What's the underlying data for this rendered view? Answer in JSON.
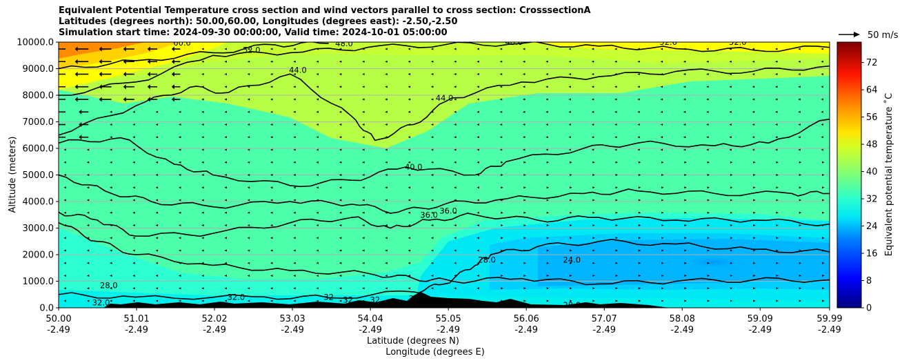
{
  "title_lines": [
    "Equivalent Potential Temperature cross section and wind vectors parallel to cross section: CrosssectionA",
    "Latitudes (degrees north): 50.00,60.00, Longitudes (degrees east): -2.50,-2.50",
    "Simulation start time: 2024-09-30 00:00:00, Valid time: 2024-10-01 05:00:00"
  ],
  "chart_data": {
    "type": "contourf-cross-section",
    "title": "Equivalent Potential Temperature cross section and wind vectors parallel to cross section: CrosssectionA",
    "ylabel": "Altitude (meters)",
    "xlabel_lat": "Latitude (degrees N)",
    "xlabel_lon": "Longitude (degrees E)",
    "ylim": [
      0,
      10000
    ],
    "xlim": [
      50.0,
      59.99
    ],
    "y_ticks": [
      0,
      1000,
      2000,
      3000,
      4000,
      5000,
      6000,
      7000,
      8000,
      9000,
      10000
    ],
    "y_tick_labels": [
      "0.0",
      "1000.0",
      "2000.0",
      "3000.0",
      "4000.0",
      "5000.0",
      "6000.0",
      "7000.0",
      "8000.0",
      "9000.0",
      "10000.0"
    ],
    "x_ticks": [
      50.0,
      51.01,
      52.02,
      53.03,
      54.04,
      55.05,
      56.06,
      57.07,
      58.08,
      59.09,
      59.99
    ],
    "x_tick_labels": [
      [
        "50.00",
        "-2.49"
      ],
      [
        "51.01",
        "-2.49"
      ],
      [
        "52.02",
        "-2.49"
      ],
      [
        "53.03",
        "-2.49"
      ],
      [
        "54.04",
        "-2.49"
      ],
      [
        "55.05",
        "-2.49"
      ],
      [
        "56.06",
        "-2.49"
      ],
      [
        "57.07",
        "-2.49"
      ],
      [
        "58.08",
        "-2.49"
      ],
      [
        "59.09",
        "-2.49"
      ],
      [
        "59.99",
        "-2.49"
      ]
    ],
    "grid": "horizontal",
    "colorbar": {
      "label": "Equivalent potential temperature ˚C",
      "range": [
        0,
        78
      ],
      "ticks": [
        0,
        8,
        16,
        24,
        32,
        40,
        48,
        56,
        64,
        72
      ],
      "tick_labels": [
        "0",
        "8",
        "16",
        "24",
        "32",
        "40",
        "48",
        "56",
        "64",
        "72"
      ]
    },
    "contour_lines": [
      {
        "level": 28,
        "points": [
          [
            50.0,
            500
          ],
          [
            51.0,
            400
          ],
          [
            52.5,
            420
          ],
          [
            53.5,
            380
          ],
          [
            54.6,
            600
          ],
          [
            55.0,
            900
          ],
          [
            55.4,
            1600
          ],
          [
            55.6,
            2000
          ],
          [
            56.2,
            2300
          ],
          [
            57.0,
            2500
          ],
          [
            58.0,
            2400
          ],
          [
            59.0,
            2200
          ],
          [
            59.99,
            2100
          ]
        ]
      },
      {
        "level": 32,
        "points": [
          [
            50.0,
            3200
          ],
          [
            50.5,
            2500
          ],
          [
            51.0,
            2000
          ],
          [
            52.0,
            1600
          ],
          [
            53.0,
            1400
          ],
          [
            54.0,
            1300
          ],
          [
            54.6,
            1100
          ],
          [
            55.1,
            1000
          ],
          [
            56.0,
            1100
          ],
          [
            57.0,
            900
          ],
          [
            58.0,
            1000
          ],
          [
            59.0,
            1050
          ],
          [
            59.99,
            1050
          ]
        ]
      },
      {
        "level": 36,
        "points": [
          [
            50.0,
            3600
          ],
          [
            50.5,
            3300
          ],
          [
            51.0,
            2700
          ],
          [
            52.0,
            2800
          ],
          [
            53.0,
            3200
          ],
          [
            53.8,
            3400
          ],
          [
            54.3,
            3000
          ],
          [
            54.8,
            3300
          ],
          [
            55.4,
            3500
          ],
          [
            56.2,
            3300
          ],
          [
            57.0,
            3400
          ],
          [
            58.0,
            3300
          ],
          [
            59.0,
            3300
          ],
          [
            59.99,
            3150
          ]
        ]
      },
      {
        "level": 40,
        "points": [
          [
            50.0,
            5000
          ],
          [
            50.6,
            4400
          ],
          [
            51.2,
            4000
          ],
          [
            52.0,
            3800
          ],
          [
            53.0,
            4000
          ],
          [
            53.8,
            3900
          ],
          [
            54.4,
            3600
          ],
          [
            55.0,
            3900
          ],
          [
            55.8,
            4100
          ],
          [
            56.8,
            4300
          ],
          [
            57.5,
            4400
          ],
          [
            58.5,
            4300
          ],
          [
            59.5,
            4300
          ],
          [
            59.99,
            4300
          ]
        ]
      },
      {
        "level": 40,
        "points": [
          [
            50.0,
            6200
          ],
          [
            50.8,
            6400
          ],
          [
            51.5,
            5400
          ],
          [
            52.0,
            5000
          ],
          [
            53.0,
            4600
          ],
          [
            53.8,
            4800
          ],
          [
            54.5,
            5300
          ],
          [
            55.4,
            5000
          ],
          [
            55.8,
            5500
          ],
          [
            56.8,
            6000
          ],
          [
            57.5,
            6200
          ],
          [
            58.5,
            6100
          ],
          [
            59.2,
            6200
          ],
          [
            59.99,
            7100
          ]
        ]
      },
      {
        "level": 44,
        "points": [
          [
            50.0,
            6500
          ],
          [
            51.0,
            7600
          ],
          [
            51.7,
            8300
          ],
          [
            52.2,
            8100
          ],
          [
            53.0,
            8800
          ],
          [
            53.8,
            7200
          ],
          [
            54.1,
            6300
          ],
          [
            54.6,
            6900
          ],
          [
            55.1,
            7900
          ],
          [
            56.0,
            8500
          ],
          [
            57.0,
            8700
          ],
          [
            58.0,
            8900
          ],
          [
            59.0,
            8900
          ],
          [
            59.99,
            9100
          ]
        ]
      },
      {
        "level": 48,
        "points": [
          [
            50.0,
            8000
          ],
          [
            51.0,
            8500
          ],
          [
            52.0,
            9500
          ],
          [
            53.0,
            9600
          ],
          [
            54.0,
            9800
          ],
          [
            55.0,
            9900
          ],
          [
            56.0,
            9950
          ],
          [
            57.0,
            9850
          ],
          [
            58.0,
            9750
          ],
          [
            59.0,
            9700
          ],
          [
            59.99,
            9800
          ]
        ]
      },
      {
        "level": 52,
        "points": [
          [
            50.0,
            9000
          ],
          [
            51.0,
            9300
          ],
          [
            52.0,
            9600
          ],
          [
            52.8,
            9900
          ],
          [
            53.5,
            9950
          ]
        ]
      }
    ],
    "contour_labels": [
      {
        "text": "60.0",
        "lat": 51.6,
        "alt": 9980
      },
      {
        "text": "52.0",
        "lat": 52.5,
        "alt": 9700
      },
      {
        "text": "48.0",
        "lat": 53.7,
        "alt": 9950
      },
      {
        "text": "48.0",
        "lat": 55.9,
        "alt": 10000
      },
      {
        "text": "52.0",
        "lat": 57.9,
        "alt": 10000
      },
      {
        "text": "52.0",
        "lat": 58.8,
        "alt": 10000
      },
      {
        "text": "44.0",
        "lat": 53.1,
        "alt": 8950
      },
      {
        "text": "44.0",
        "lat": 55.0,
        "alt": 7900
      },
      {
        "text": "40.0",
        "lat": 54.6,
        "alt": 5300
      },
      {
        "text": "36.0",
        "lat": 54.8,
        "alt": 3500
      },
      {
        "text": "36.0",
        "lat": 55.05,
        "alt": 3650
      },
      {
        "text": "28.0",
        "lat": 55.55,
        "alt": 1800
      },
      {
        "text": "24.0",
        "lat": 56.65,
        "alt": 1800
      },
      {
        "text": "28.0",
        "lat": 50.65,
        "alt": 850
      },
      {
        "text": "32.0",
        "lat": 50.55,
        "alt": 200
      },
      {
        "text": "32.0",
        "lat": 52.3,
        "alt": 400
      },
      {
        "text": "32",
        "lat": 53.5,
        "alt": 400
      },
      {
        "text": "32",
        "lat": 53.75,
        "alt": 300
      },
      {
        "text": "32",
        "lat": 54.1,
        "alt": 300
      },
      {
        "text": "32",
        "lat": 54.6,
        "alt": 350
      },
      {
        "text": "28.0",
        "lat": 56.65,
        "alt": 100
      }
    ],
    "wind_reference": {
      "label": "50 m/s",
      "speed": 50
    }
  }
}
